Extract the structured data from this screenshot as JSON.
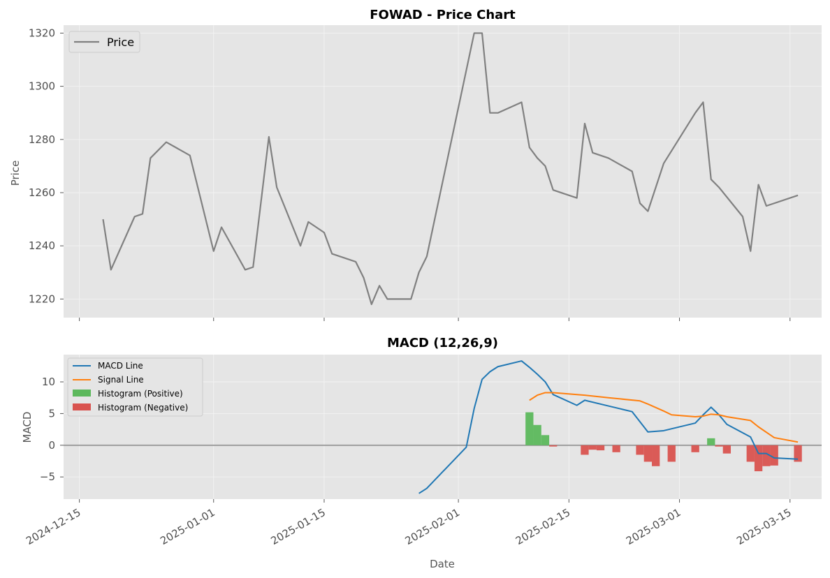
{
  "chart_data": [
    {
      "type": "line",
      "title": "FOWAD - Price Chart",
      "xlabel": "",
      "ylabel": "Price",
      "xlim": [
        "2024-12-13",
        "2025-03-19"
      ],
      "ylim": [
        1213,
        1323
      ],
      "yticks": [
        1220,
        1240,
        1260,
        1280,
        1300,
        1320
      ],
      "grid": true,
      "legend_position": "top-left",
      "series": [
        {
          "name": "Price",
          "color": "#808080",
          "points": [
            [
              "2024-12-18",
              1250
            ],
            [
              "2024-12-19",
              1231
            ],
            [
              "2024-12-22",
              1251
            ],
            [
              "2024-12-23",
              1252
            ],
            [
              "2024-12-24",
              1273
            ],
            [
              "2024-12-26",
              1279
            ],
            [
              "2024-12-29",
              1274
            ],
            [
              "2025-01-01",
              1238
            ],
            [
              "2025-01-02",
              1247
            ],
            [
              "2025-01-05",
              1231
            ],
            [
              "2025-01-06",
              1232
            ],
            [
              "2025-01-08",
              1281
            ],
            [
              "2025-01-09",
              1262
            ],
            [
              "2025-01-12",
              1240
            ],
            [
              "2025-01-13",
              1249
            ],
            [
              "2025-01-15",
              1245
            ],
            [
              "2025-01-16",
              1237
            ],
            [
              "2025-01-19",
              1234
            ],
            [
              "2025-01-20",
              1228
            ],
            [
              "2025-01-21",
              1218
            ],
            [
              "2025-01-22",
              1225
            ],
            [
              "2025-01-23",
              1220
            ],
            [
              "2025-01-26",
              1220
            ],
            [
              "2025-01-27",
              1230
            ],
            [
              "2025-01-28",
              1236
            ],
            [
              "2025-02-03",
              1320
            ],
            [
              "2025-02-04",
              1320
            ],
            [
              "2025-02-05",
              1290
            ],
            [
              "2025-02-06",
              1290
            ],
            [
              "2025-02-09",
              1294
            ],
            [
              "2025-02-10",
              1277
            ],
            [
              "2025-02-11",
              1273
            ],
            [
              "2025-02-12",
              1270
            ],
            [
              "2025-02-13",
              1261
            ],
            [
              "2025-02-16",
              1258
            ],
            [
              "2025-02-17",
              1286
            ],
            [
              "2025-02-18",
              1275
            ],
            [
              "2025-02-20",
              1273
            ],
            [
              "2025-02-23",
              1268
            ],
            [
              "2025-02-24",
              1256
            ],
            [
              "2025-02-25",
              1253
            ],
            [
              "2025-02-27",
              1271
            ],
            [
              "2025-03-03",
              1290
            ],
            [
              "2025-03-04",
              1294
            ],
            [
              "2025-03-05",
              1265
            ],
            [
              "2025-03-06",
              1262
            ],
            [
              "2025-03-09",
              1251
            ],
            [
              "2025-03-10",
              1238
            ],
            [
              "2025-03-11",
              1263
            ],
            [
              "2025-03-12",
              1255
            ],
            [
              "2025-03-16",
              1259
            ]
          ]
        }
      ]
    },
    {
      "type": "line",
      "title": "MACD (12,26,9)",
      "xlabel": "Date",
      "ylabel": "MACD",
      "xlim": [
        "2024-12-13",
        "2025-03-19"
      ],
      "ylim": [
        -8.5,
        14.3
      ],
      "yticks": [
        -5,
        0,
        5,
        10
      ],
      "xticks": [
        "2024-12-15",
        "2025-01-01",
        "2025-01-15",
        "2025-02-01",
        "2025-02-15",
        "2025-03-01",
        "2025-03-15"
      ],
      "zero_line": 0,
      "grid": true,
      "legend_position": "top-left",
      "series": [
        {
          "name": "MACD Line",
          "color": "#1f77b4",
          "points": [
            [
              "2025-01-27",
              -7.6
            ],
            [
              "2025-01-28",
              -6.8
            ],
            [
              "2025-02-02",
              -0.3
            ],
            [
              "2025-02-03",
              5.8
            ],
            [
              "2025-02-04",
              10.4
            ],
            [
              "2025-02-05",
              11.6
            ],
            [
              "2025-02-06",
              12.4
            ],
            [
              "2025-02-09",
              13.3
            ],
            [
              "2025-02-10",
              12.3
            ],
            [
              "2025-02-11",
              11.2
            ],
            [
              "2025-02-12",
              10.0
            ],
            [
              "2025-02-13",
              8.0
            ],
            [
              "2025-02-16",
              6.3
            ],
            [
              "2025-02-17",
              7.1
            ],
            [
              "2025-02-20",
              6.2
            ],
            [
              "2025-02-23",
              5.3
            ],
            [
              "2025-02-25",
              2.1
            ],
            [
              "2025-02-27",
              2.3
            ],
            [
              "2025-03-03",
              3.5
            ],
            [
              "2025-03-04",
              4.8
            ],
            [
              "2025-03-05",
              6.0
            ],
            [
              "2025-03-06",
              4.8
            ],
            [
              "2025-03-07",
              3.3
            ],
            [
              "2025-03-10",
              1.3
            ],
            [
              "2025-03-11",
              -1.3
            ],
            [
              "2025-03-12",
              -1.3
            ],
            [
              "2025-03-13",
              -2.0
            ],
            [
              "2025-03-16",
              -2.2
            ]
          ]
        },
        {
          "name": "Signal Line",
          "color": "#ff7f0e",
          "points": [
            [
              "2025-02-10",
              7.1
            ],
            [
              "2025-02-11",
              7.9
            ],
            [
              "2025-02-12",
              8.3
            ],
            [
              "2025-02-13",
              8.3
            ],
            [
              "2025-02-17",
              7.9
            ],
            [
              "2025-02-20",
              7.5
            ],
            [
              "2025-02-24",
              7.0
            ],
            [
              "2025-02-25",
              6.5
            ],
            [
              "2025-02-27",
              5.4
            ],
            [
              "2025-02-28",
              4.8
            ],
            [
              "2025-03-03",
              4.5
            ],
            [
              "2025-03-04",
              4.6
            ],
            [
              "2025-03-05",
              4.9
            ],
            [
              "2025-03-06",
              4.8
            ],
            [
              "2025-03-07",
              4.5
            ],
            [
              "2025-03-10",
              3.9
            ],
            [
              "2025-03-11",
              2.9
            ],
            [
              "2025-03-13",
              1.2
            ],
            [
              "2025-03-16",
              0.5
            ]
          ]
        },
        {
          "name": "Histogram (Positive)",
          "color": "#5cb85c",
          "type": "bar",
          "points": [
            [
              "2025-02-10",
              5.2
            ],
            [
              "2025-02-11",
              3.2
            ],
            [
              "2025-02-12",
              1.6
            ],
            [
              "2025-03-05",
              1.1
            ]
          ]
        },
        {
          "name": "Histogram (Negative)",
          "color": "#d9534f",
          "type": "bar",
          "points": [
            [
              "2025-02-13",
              -0.2
            ],
            [
              "2025-02-17",
              -1.5
            ],
            [
              "2025-02-18",
              -0.7
            ],
            [
              "2025-02-19",
              -0.8
            ],
            [
              "2025-02-21",
              -1.1
            ],
            [
              "2025-02-24",
              -1.5
            ],
            [
              "2025-02-25",
              -2.6
            ],
            [
              "2025-02-26",
              -3.3
            ],
            [
              "2025-02-28",
              -2.6
            ],
            [
              "2025-03-03",
              -1.1
            ],
            [
              "2025-03-06",
              -0.2
            ],
            [
              "2025-03-07",
              -1.3
            ],
            [
              "2025-03-10",
              -2.6
            ],
            [
              "2025-03-11",
              -4.1
            ],
            [
              "2025-03-12",
              -3.3
            ],
            [
              "2025-03-13",
              -3.2
            ],
            [
              "2025-03-16",
              -2.6
            ]
          ]
        }
      ]
    }
  ]
}
